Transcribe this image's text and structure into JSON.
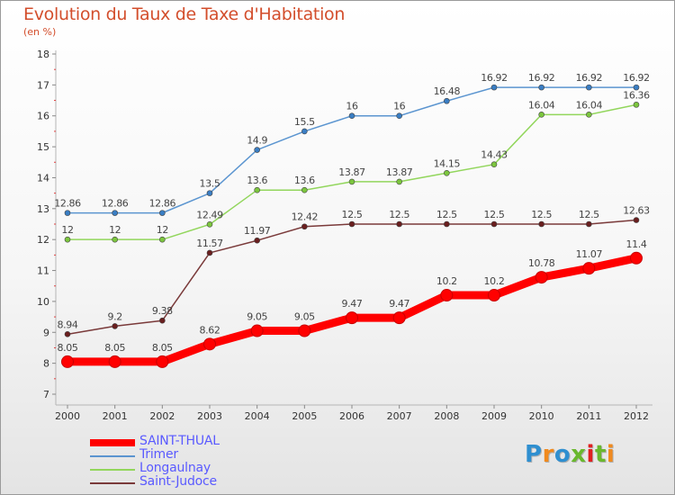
{
  "title": "Evolution du Taux de Taxe d'Habitation",
  "subtitle": "(en %)",
  "logo": {
    "text": "Proxiti",
    "colors": [
      "#2f8fd0",
      "#f08a1e",
      "#2f8fd0",
      "#6ab82e",
      "#e02020",
      "#6ab82e",
      "#f08a1e"
    ]
  },
  "chart_data": {
    "type": "line",
    "x": [
      "2000",
      "2001",
      "2002",
      "2003",
      "2004",
      "2005",
      "2006",
      "2007",
      "2008",
      "2009",
      "2010",
      "2011",
      "2012"
    ],
    "ylim": [
      7,
      18
    ],
    "yticks": [
      "7",
      "8",
      "9",
      "10",
      "11",
      "12",
      "13",
      "14",
      "15",
      "16",
      "17",
      "18"
    ],
    "grid": false,
    "legend": "bottom-left",
    "series": [
      {
        "name": "SAINT-THUAL",
        "color": "#ff0000",
        "weight": "thick",
        "values": [
          8.05,
          8.05,
          8.05,
          8.62,
          9.05,
          9.05,
          9.47,
          9.47,
          10.2,
          10.2,
          10.78,
          11.07,
          11.4
        ],
        "labels": [
          "8.05",
          "8.05",
          "8.05",
          "8.62",
          "9.05",
          "9.05",
          "9.47",
          "9.47",
          "10.2",
          "10.2",
          "10.78",
          "11.07",
          "11.4"
        ]
      },
      {
        "name": "Trimer",
        "color": "#5b95d0",
        "marker": "#3a7ec4",
        "weight": "thin",
        "values": [
          12.86,
          12.86,
          12.86,
          13.5,
          14.9,
          15.5,
          16,
          16,
          16.48,
          16.92,
          16.92,
          16.92,
          16.92
        ],
        "labels": [
          "12.86",
          "12.86",
          "12.86",
          "13.5",
          "14.9",
          "15.5",
          "16",
          "16",
          "16.48",
          "16.92",
          "16.92",
          "16.92",
          "16.92"
        ]
      },
      {
        "name": "Longaulnay",
        "color": "#92d65c",
        "marker": "#7cc63e",
        "weight": "thin",
        "values": [
          12,
          12,
          12,
          12.49,
          13.6,
          13.6,
          13.87,
          13.87,
          14.15,
          14.43,
          16.04,
          16.04,
          16.36
        ],
        "labels": [
          "12",
          "12",
          "12",
          "12.49",
          "13.6",
          "13.6",
          "13.87",
          "13.87",
          "14.15",
          "14.43",
          "16.04",
          "16.04",
          "16.36"
        ]
      },
      {
        "name": "Saint-Judoce",
        "color": "#7a3a3a",
        "marker": "#6a1f1f",
        "weight": "thin",
        "values": [
          8.94,
          9.2,
          9.38,
          11.57,
          11.97,
          12.42,
          12.5,
          12.5,
          12.5,
          12.5,
          12.5,
          12.5,
          12.63
        ],
        "labels": [
          "8.94",
          "9.2",
          "9.38",
          "11.57",
          "11.97",
          "12.42",
          "12.5",
          "12.5",
          "12.5",
          "12.5",
          "12.5",
          "12.5",
          "12.63"
        ]
      }
    ]
  }
}
